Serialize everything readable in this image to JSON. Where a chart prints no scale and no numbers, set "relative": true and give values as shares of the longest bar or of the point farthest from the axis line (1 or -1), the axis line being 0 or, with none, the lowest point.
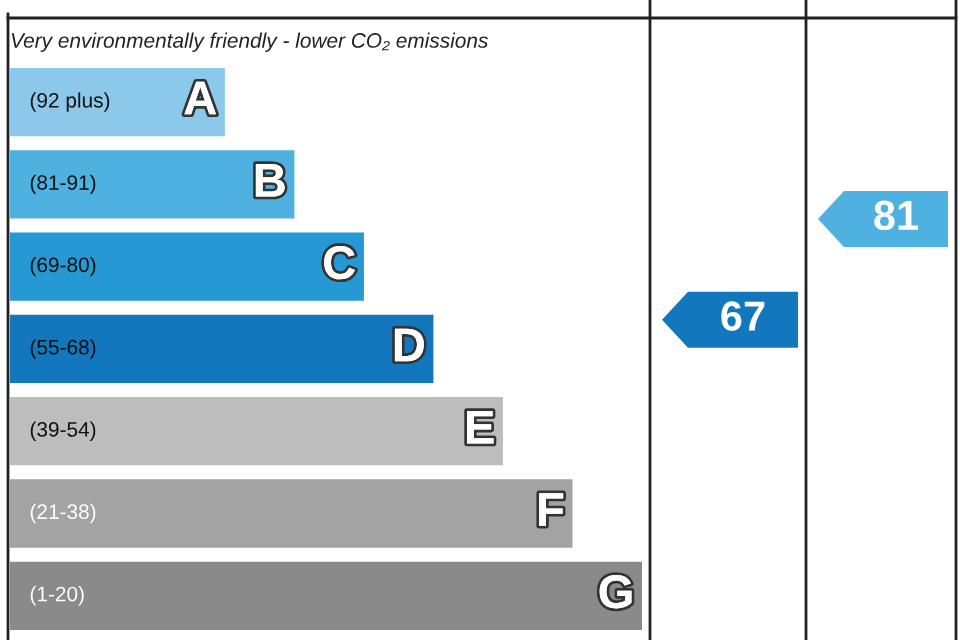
{
  "chart_data": {
    "type": "bar",
    "orientation": "horizontal",
    "relative": true,
    "title": "Very environmentally friendly - lower CO₂ emissions",
    "categories": [
      "A",
      "B",
      "C",
      "D",
      "E",
      "F",
      "G"
    ],
    "values": [
      0.34,
      0.45,
      0.56,
      0.67,
      0.78,
      0.89,
      1
    ],
    "colors": [
      "#8cc8ea",
      "#4fb1df",
      "#2699d4",
      "#1377bd",
      "#bdbdbd",
      "#a3a3a3",
      "#8a8a8a"
    ],
    "annotations": [
      "(92 plus)",
      "(81-91)",
      "(69-80)",
      "(55-68)",
      "(39-54)",
      "(21-38)",
      "(1-20)",
      "67",
      "81"
    ]
  }
}
